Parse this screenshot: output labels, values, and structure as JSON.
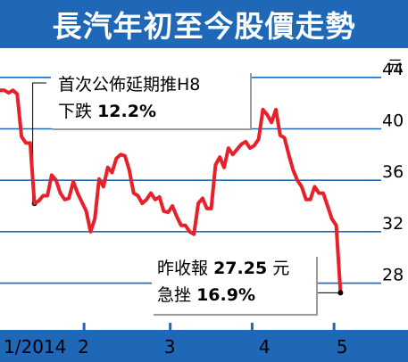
{
  "title": "長汽年初至今股價走勢",
  "annotation_top": {
    "line1": "首次公佈延期推H8",
    "line2_prefix": "下跌",
    "line2_value": "12.2%"
  },
  "annotation_bottom": {
    "line1_prefix": "昨收報",
    "line1_value": "27.25",
    "line1_suffix": "元",
    "line2_prefix": "急挫",
    "line2_value": "16.9%"
  },
  "colors": {
    "bar": "#1f68b8",
    "line": "#e8202a",
    "grid": "#1f68b8",
    "axis_text": "#000000"
  },
  "chart_data": {
    "type": "line",
    "title": "長汽年初至今股價走勢",
    "ylabel": "元",
    "ylim": [
      24.5,
      46
    ],
    "yticks": [
      28,
      32,
      36,
      40,
      44
    ],
    "grid": "horizontal",
    "x_tick_labels": [
      "1/2014",
      "2",
      "3",
      "4",
      "5"
    ],
    "x_tick_positions": [
      0,
      19.5,
      39.5,
      61.5,
      79.5
    ],
    "x_minor_ticks": [
      19.5,
      39.5,
      58.5,
      77.5
    ],
    "x_range": [
      0,
      87
    ],
    "series": [
      {
        "values": [
          43.0,
          43.0,
          42.8,
          43.0,
          42.7,
          39.4,
          38.9,
          38.9,
          34.2,
          34.4,
          34.8,
          34.8,
          36.4,
          36.0,
          35.0,
          34.5,
          34.6,
          35.9,
          35.0,
          34.3,
          33.6,
          32.0,
          33.0,
          36.1,
          35.5,
          37.0,
          36.6,
          37.7,
          38.0,
          37.9,
          36.8,
          35.0,
          34.8,
          34.2,
          34.5,
          35.0,
          34.5,
          34.7,
          33.6,
          33.5,
          34.0,
          33.2,
          32.5,
          32.5,
          32.0,
          31.8,
          34.2,
          34.6,
          33.8,
          33.8,
          37.2,
          37.8,
          37.0,
          38.5,
          38.0,
          38.4,
          38.8,
          39.0,
          38.5,
          38.7,
          39.2,
          41.5,
          41.1,
          40.5,
          41.5,
          39.5,
          39.3,
          38.0,
          36.8,
          36.0,
          35.5,
          34.5,
          34.5,
          35.5,
          35.0,
          35.0,
          34.0,
          33.0,
          32.5,
          27.25
        ]
      }
    ]
  }
}
